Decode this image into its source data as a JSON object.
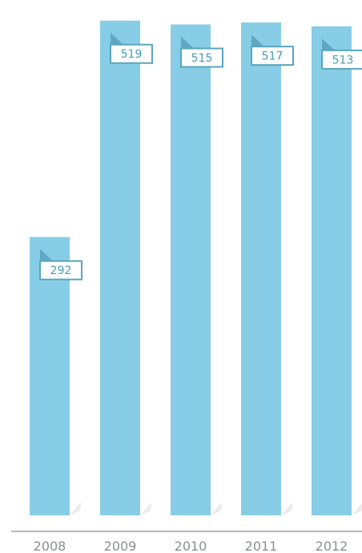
{
  "chart_data": {
    "type": "bar",
    "categories": [
      "2008",
      "2009",
      "2010",
      "2011",
      "2012"
    ],
    "values": [
      292,
      519,
      515,
      517,
      513
    ],
    "data_labels": [
      "292",
      "519",
      "515",
      "517",
      "513"
    ],
    "title": "",
    "xlabel": "",
    "ylabel": "",
    "ylim": [
      0,
      528
    ],
    "grid": false,
    "legend": "none",
    "colors": {
      "bar": "#87cde6",
      "bar_fold": "#5ea8c4",
      "label_border": "#5aa5bd",
      "label_text": "#4a9db5",
      "label_bg": "#ffffff",
      "shadow": "#c9c9c9",
      "axis": "#b8b8b8",
      "tick_text": "#8a8f92"
    }
  }
}
